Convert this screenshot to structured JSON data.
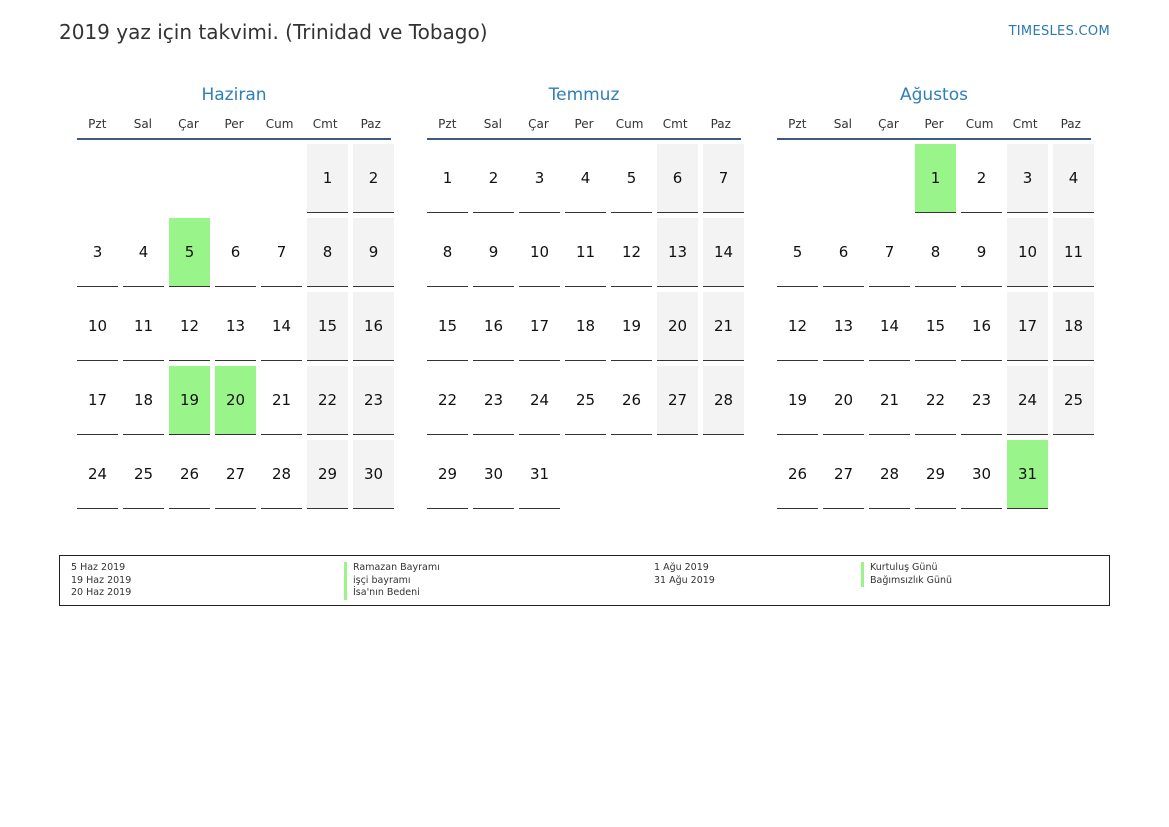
{
  "header": {
    "title": "2019 yaz için takvimi. (Trinidad ve Tobago)",
    "site": "TIMESLES.COM"
  },
  "weekdays": [
    "Pzt",
    "Sal",
    "Çar",
    "Per",
    "Cum",
    "Cmt",
    "Paz"
  ],
  "colors": {
    "holiday": "#99f58a",
    "weekend": "#f3f3f3",
    "month_title": "#2e7fb8",
    "accent_line": "#3d5a80"
  },
  "months": [
    {
      "name": "Haziran",
      "leading_blanks": 5,
      "days": [
        "1",
        "2",
        "3",
        "4",
        "5",
        "6",
        "7",
        "8",
        "9",
        "10",
        "11",
        "12",
        "13",
        "14",
        "15",
        "16",
        "17",
        "18",
        "19",
        "20",
        "21",
        "22",
        "23",
        "24",
        "25",
        "26",
        "27",
        "28",
        "29",
        "30"
      ],
      "holidays": [
        5,
        19,
        20
      ]
    },
    {
      "name": "Temmuz",
      "leading_blanks": 0,
      "days": [
        "1",
        "2",
        "3",
        "4",
        "5",
        "6",
        "7",
        "8",
        "9",
        "10",
        "11",
        "12",
        "13",
        "14",
        "15",
        "16",
        "17",
        "18",
        "19",
        "20",
        "21",
        "22",
        "23",
        "24",
        "25",
        "26",
        "27",
        "28",
        "29",
        "30",
        "31"
      ],
      "holidays": []
    },
    {
      "name": "Ağustos",
      "leading_blanks": 3,
      "days": [
        "1",
        "2",
        "3",
        "4",
        "5",
        "6",
        "7",
        "8",
        "9",
        "10",
        "11",
        "12",
        "13",
        "14",
        "15",
        "16",
        "17",
        "18",
        "19",
        "20",
        "21",
        "22",
        "23",
        "24",
        "25",
        "26",
        "27",
        "28",
        "29",
        "30",
        "31"
      ],
      "holidays": [
        1,
        31
      ]
    }
  ],
  "legend": {
    "group1": {
      "dates": [
        "5 Haz 2019",
        "19 Haz 2019",
        "20 Haz 2019"
      ],
      "names": [
        "Ramazan Bayramı",
        "işçi bayramı",
        "İsa'nın Bedeni"
      ]
    },
    "group2": {
      "dates": [
        "1 Ağu 2019",
        "31 Ağu 2019"
      ],
      "names": [
        "Kurtuluş Günü",
        "Bağımsızlık Günü"
      ]
    }
  }
}
